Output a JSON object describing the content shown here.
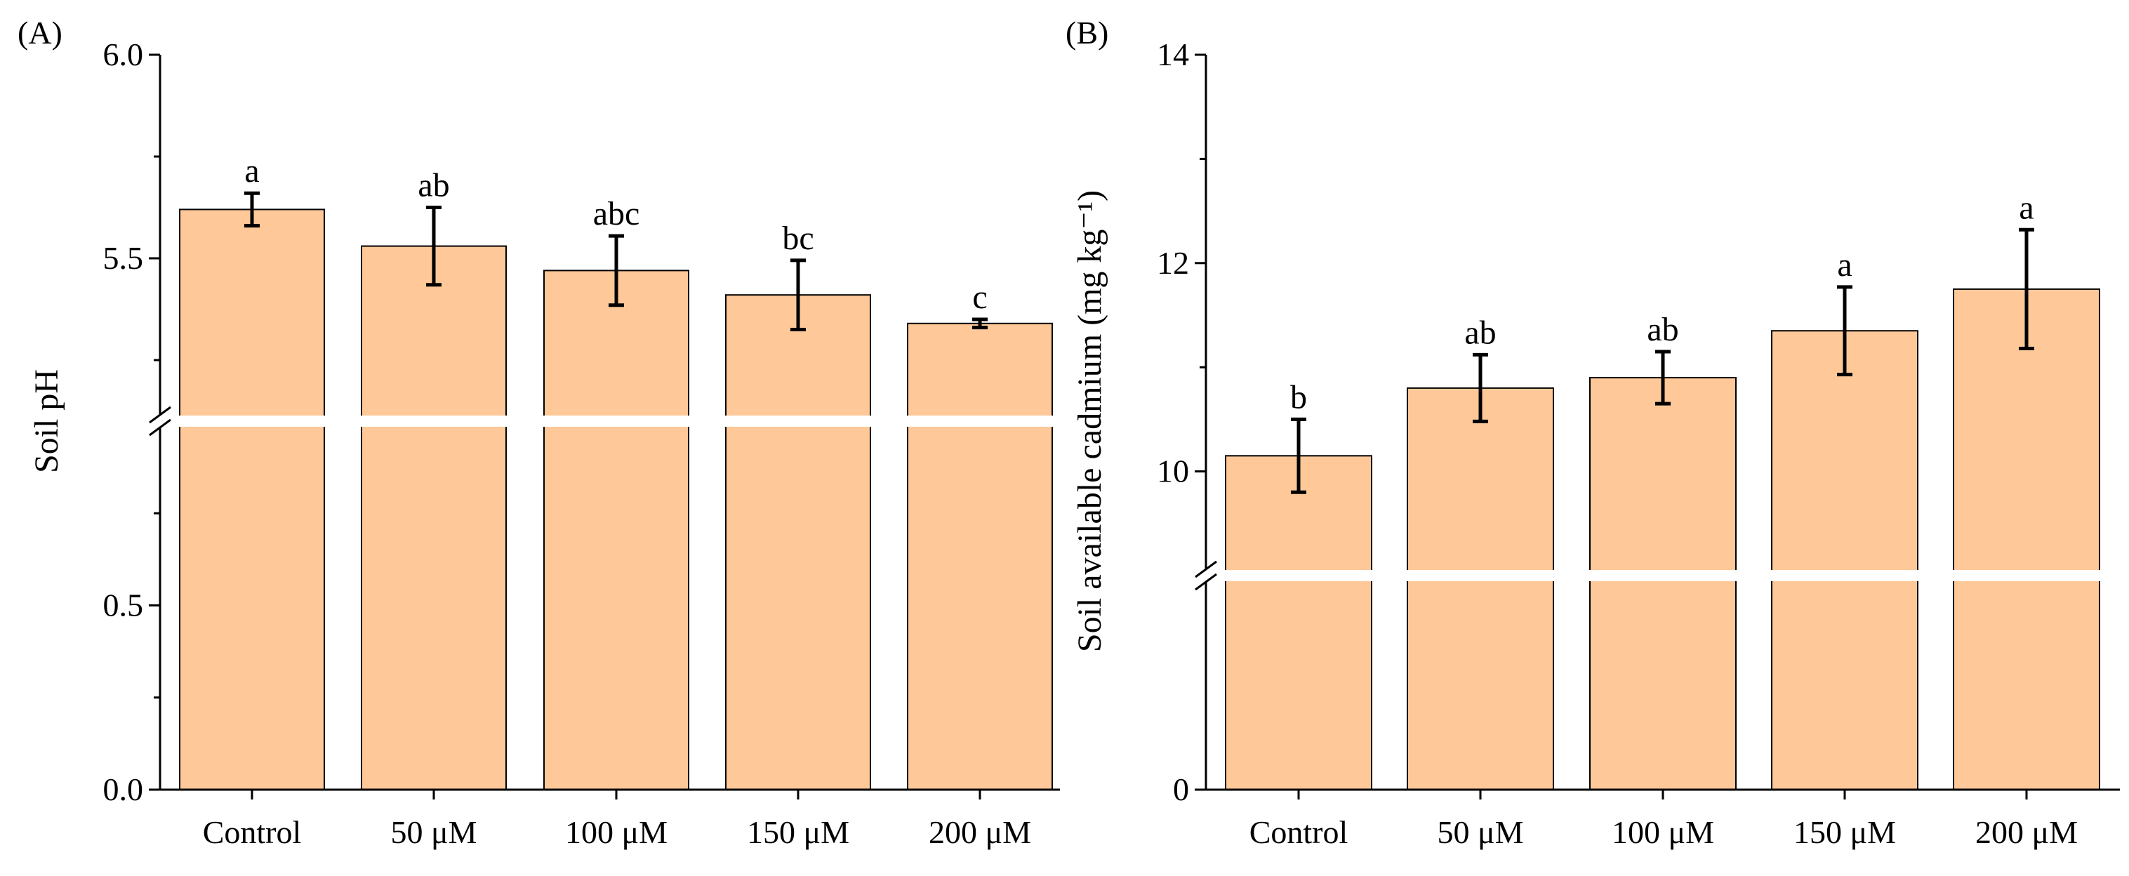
{
  "colors": {
    "bar_fill": "#fec899",
    "bar_stroke": "#000000",
    "break_band": "#ffffff"
  },
  "chart_data": [
    {
      "type": "bar",
      "panel_label": "(A)",
      "categories": [
        "Control",
        "50 μM",
        "100 μM",
        "150 μM",
        "200 μM"
      ],
      "values": [
        5.62,
        5.53,
        5.47,
        5.41,
        5.34
      ],
      "errors": [
        0.04,
        0.095,
        0.085,
        0.085,
        0.01
      ],
      "significance": [
        "a",
        "ab",
        "abc",
        "bc",
        "c"
      ],
      "ylabel": "Soil pH",
      "xlabel": "",
      "axis_break": {
        "lower_range": [
          0,
          1.0
        ],
        "upper_range": [
          5.1,
          6.0
        ]
      },
      "y_tick_labels": [
        "0.0",
        "0.5",
        "5.5",
        "6.0"
      ],
      "y_ticks": [
        0,
        0.5,
        5.5,
        6.0
      ],
      "grid": false,
      "legend": "none"
    },
    {
      "type": "bar",
      "panel_label": "(B)",
      "categories": [
        "Control",
        "50 μM",
        "100 μM",
        "150 μM",
        "200 μM"
      ],
      "values": [
        10.15,
        10.8,
        10.9,
        11.35,
        11.75
      ],
      "errors": [
        0.35,
        0.32,
        0.25,
        0.42,
        0.57
      ],
      "significance": [
        "b",
        "ab",
        "ab",
        "a",
        "a"
      ],
      "ylabel": "Soil available cadmium (mg kg⁻¹)",
      "xlabel": "",
      "axis_break": {
        "lower_range": [
          0,
          9.0
        ],
        "upper_range": [
          9.0,
          14.0
        ]
      },
      "y_tick_labels": [
        "0",
        "10",
        "12",
        "14"
      ],
      "y_ticks": [
        0,
        10,
        12,
        14
      ],
      "grid": false,
      "legend": "none"
    }
  ]
}
